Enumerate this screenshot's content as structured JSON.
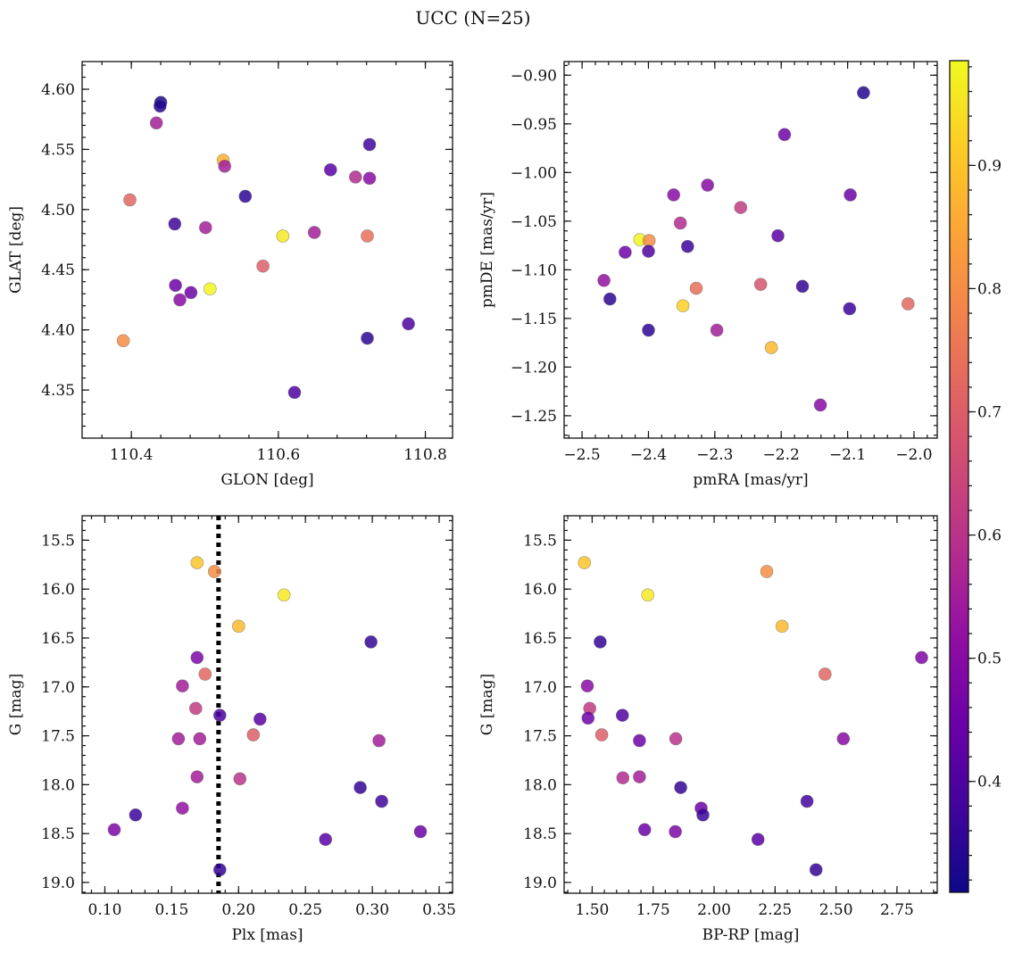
{
  "figure": {
    "title": "UCC (N=25)",
    "colormap": "plasma",
    "marker_alpha": 0.85,
    "colorbar": {
      "range": [
        0.31,
        0.985
      ],
      "ticks": [
        0.4,
        0.5,
        0.6,
        0.7,
        0.8,
        0.9
      ],
      "tick_labels": [
        "0.4",
        "0.5",
        "0.6",
        "0.7",
        "0.8",
        "0.9"
      ]
    }
  },
  "chart_data": [
    {
      "id": "glon-glat",
      "type": "scatter",
      "title": "",
      "xlabel": "GLON [deg]",
      "ylabel": "GLAT [deg]",
      "xlim": [
        110.333,
        110.837
      ],
      "ylim": [
        4.31,
        4.623
      ],
      "xinvert": false,
      "yinvert": false,
      "grid": false,
      "xticks": [
        110.4,
        110.6,
        110.8
      ],
      "xtick_labels": [
        "110.4",
        "110.6",
        "110.8"
      ],
      "yticks": [
        4.35,
        4.4,
        4.45,
        4.5,
        4.55,
        4.6
      ],
      "ytick_labels": [
        "4.35",
        "4.40",
        "4.45",
        "4.50",
        "4.55",
        "4.60"
      ],
      "x": [
        110.44,
        110.439,
        110.434,
        110.525,
        110.527,
        110.398,
        110.459,
        110.501,
        110.606,
        110.649,
        110.671,
        110.705,
        110.724,
        110.721,
        110.555,
        110.579,
        110.46,
        110.481,
        110.507,
        110.466,
        110.389,
        110.721,
        110.777,
        110.622,
        110.724
      ],
      "y": [
        4.589,
        4.586,
        4.572,
        4.541,
        4.536,
        4.508,
        4.488,
        4.485,
        4.478,
        4.481,
        4.533,
        4.527,
        4.526,
        4.478,
        4.511,
        4.453,
        4.437,
        4.431,
        4.434,
        4.425,
        4.391,
        4.393,
        4.405,
        4.348,
        4.554
      ],
      "c": [
        0.33,
        0.34,
        0.55,
        0.87,
        0.55,
        0.72,
        0.38,
        0.55,
        0.96,
        0.55,
        0.42,
        0.58,
        0.5,
        0.74,
        0.35,
        0.7,
        0.45,
        0.45,
        0.98,
        0.5,
        0.8,
        0.35,
        0.4,
        0.4,
        0.38
      ]
    },
    {
      "id": "pmra-pmde",
      "type": "scatter",
      "title": "",
      "xlabel": "pmRA [mas/yr]",
      "ylabel": "pmDE [mas/yr]",
      "xlim": [
        -2.527,
        -1.965
      ],
      "ylim": [
        -1.273,
        -0.886
      ],
      "xinvert": false,
      "yinvert": false,
      "grid": false,
      "xticks": [
        -2.5,
        -2.4,
        -2.3,
        -2.2,
        -2.1,
        -2.0
      ],
      "xtick_labels": [
        "−2.5",
        "−2.4",
        "−2.3",
        "−2.2",
        "−2.1",
        "−2.0"
      ],
      "yticks": [
        -1.25,
        -1.2,
        -1.15,
        -1.1,
        -1.05,
        -1.0,
        -0.95,
        -0.9
      ],
      "ytick_labels": [
        "−1.25",
        "−1.20",
        "−1.15",
        "−1.10",
        "−1.05",
        "−1.00",
        "−0.95",
        "−0.90"
      ],
      "x": [
        -2.076,
        -2.195,
        -2.096,
        -2.362,
        -2.311,
        -2.261,
        -2.352,
        -2.413,
        -2.399,
        -2.435,
        -2.4,
        -2.341,
        -2.205,
        -2.467,
        -2.458,
        -2.328,
        -2.231,
        -2.168,
        -2.097,
        -2.009,
        -2.348,
        -2.215,
        -2.297,
        -2.141,
        -2.4
      ],
      "y": [
        -0.918,
        -0.961,
        -1.023,
        -1.023,
        -1.013,
        -1.036,
        -1.052,
        -1.069,
        -1.07,
        -1.082,
        -1.081,
        -1.076,
        -1.065,
        -1.111,
        -1.13,
        -1.119,
        -1.115,
        -1.117,
        -1.14,
        -1.135,
        -1.137,
        -1.18,
        -1.162,
        -1.239,
        -1.162
      ],
      "c": [
        0.34,
        0.45,
        0.45,
        0.5,
        0.5,
        0.62,
        0.58,
        0.98,
        0.8,
        0.45,
        0.4,
        0.37,
        0.42,
        0.52,
        0.35,
        0.74,
        0.68,
        0.36,
        0.37,
        0.72,
        0.92,
        0.88,
        0.55,
        0.5,
        0.35
      ]
    },
    {
      "id": "plx-g",
      "type": "scatter",
      "title": "",
      "xlabel": "Plx [mas]",
      "ylabel": "G [mag]",
      "xlim": [
        0.083,
        0.36
      ],
      "ylim": [
        19.11,
        15.25
      ],
      "xinvert": false,
      "yinvert": true,
      "grid": false,
      "xticks": [
        0.1,
        0.15,
        0.2,
        0.25,
        0.3,
        0.35
      ],
      "xtick_labels": [
        "0.10",
        "0.15",
        "0.20",
        "0.25",
        "0.30",
        "0.35"
      ],
      "yticks": [
        15.5,
        16.0,
        16.5,
        17.0,
        17.5,
        18.0,
        18.5,
        19.0
      ],
      "ytick_labels": [
        "15.5",
        "16.0",
        "16.5",
        "17.0",
        "17.5",
        "18.0",
        "18.5",
        "19.0"
      ],
      "vline": 0.185,
      "x": [
        0.169,
        0.182,
        0.234,
        0.2,
        0.299,
        0.169,
        0.175,
        0.158,
        0.168,
        0.186,
        0.216,
        0.211,
        0.155,
        0.171,
        0.305,
        0.169,
        0.201,
        0.291,
        0.158,
        0.307,
        0.123,
        0.107,
        0.265,
        0.336,
        0.186
      ],
      "y": [
        15.73,
        15.82,
        16.06,
        16.38,
        16.54,
        16.7,
        16.87,
        16.99,
        17.22,
        17.29,
        17.33,
        17.49,
        17.53,
        17.53,
        17.55,
        17.92,
        17.94,
        18.03,
        18.24,
        18.17,
        18.31,
        18.46,
        18.56,
        18.48,
        18.87
      ],
      "c": [
        0.9,
        0.8,
        0.96,
        0.88,
        0.36,
        0.48,
        0.72,
        0.55,
        0.62,
        0.4,
        0.42,
        0.7,
        0.55,
        0.55,
        0.55,
        0.55,
        0.6,
        0.36,
        0.52,
        0.38,
        0.37,
        0.48,
        0.42,
        0.45,
        0.36
      ]
    },
    {
      "id": "bprp-g",
      "type": "scatter",
      "title": "",
      "xlabel": "BP-RP [mag]",
      "ylabel": "G [mag]",
      "xlim": [
        1.385,
        2.915
      ],
      "ylim": [
        19.11,
        15.25
      ],
      "xinvert": false,
      "yinvert": true,
      "grid": false,
      "xticks": [
        1.5,
        1.75,
        2.0,
        2.25,
        2.5,
        2.75
      ],
      "xtick_labels": [
        "1.50",
        "1.75",
        "2.00",
        "2.25",
        "2.50",
        "2.75"
      ],
      "yticks": [
        15.5,
        16.0,
        16.5,
        17.0,
        17.5,
        18.0,
        18.5,
        19.0
      ],
      "ytick_labels": [
        "15.5",
        "16.0",
        "16.5",
        "17.0",
        "17.5",
        "18.0",
        "18.5",
        "19.0"
      ],
      "x": [
        1.468,
        2.216,
        1.728,
        2.279,
        1.533,
        2.851,
        2.455,
        1.48,
        1.49,
        1.624,
        1.539,
        1.843,
        2.53,
        1.694,
        1.626,
        1.694,
        1.863,
        1.947,
        1.954,
        2.381,
        1.483,
        1.715,
        1.841,
        2.18,
        2.418
      ],
      "y": [
        15.73,
        15.82,
        16.06,
        16.38,
        16.54,
        16.7,
        16.87,
        16.99,
        17.22,
        17.29,
        17.49,
        17.53,
        17.53,
        17.55,
        17.93,
        17.92,
        18.03,
        18.24,
        18.31,
        18.17,
        17.32,
        18.46,
        18.48,
        18.56,
        18.87
      ],
      "c": [
        0.9,
        0.8,
        0.96,
        0.88,
        0.36,
        0.48,
        0.72,
        0.5,
        0.62,
        0.4,
        0.7,
        0.6,
        0.5,
        0.45,
        0.58,
        0.55,
        0.36,
        0.45,
        0.37,
        0.38,
        0.45,
        0.45,
        0.48,
        0.42,
        0.36
      ]
    }
  ]
}
